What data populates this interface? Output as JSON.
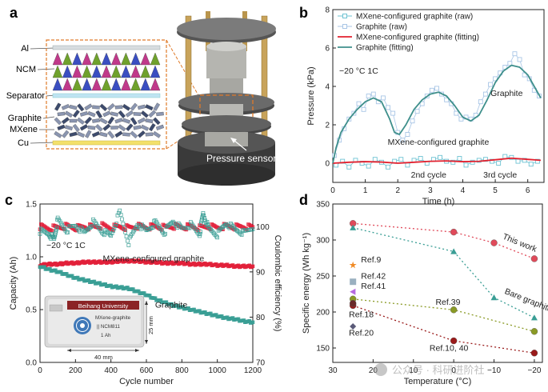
{
  "panel_labels": {
    "a": "a",
    "b": "b",
    "c": "c",
    "d": "d"
  },
  "panel_a": {
    "layer_labels": [
      "Al",
      "NCM",
      "Separator",
      "Graphite",
      "MXene",
      "Cu"
    ],
    "sensor_label": "Pressure sensor",
    "colors": {
      "ncm_pink": "#c0398a",
      "ncm_green": "#6fa12c",
      "ncm_blue": "#3a4ec1",
      "frame": "#e07b2a",
      "cu": "#f3e06a",
      "separator": "#bfe4f2"
    }
  },
  "panel_c_inset": {
    "brand": "Beihang University",
    "line1": "MXene-graphite",
    "line2": "|| NCM811",
    "line3": "1 Ah",
    "width_label": "40 mm",
    "height_label": "25 mm",
    "colors": {
      "brand_bar": "#8b2325"
    }
  },
  "chart_data": [
    {
      "id": "b",
      "type": "line",
      "xlabel": "Time (h)",
      "ylabel": "Pressure (kPa)",
      "xlim": [
        0,
        6.5
      ],
      "ylim": [
        -1,
        8
      ],
      "xticks": [
        0,
        1,
        2,
        3,
        4,
        5,
        6
      ],
      "yticks": [
        0,
        2,
        4,
        6,
        8
      ],
      "legend_position": "top-left",
      "condition_text": "−20 °C   1C",
      "annotations": [
        {
          "text": "Graphite",
          "x": 5.35,
          "y": 3.5
        },
        {
          "text": "MXene-configured graphite",
          "x": 3.25,
          "y": 0.95
        },
        {
          "text": "2nd cycle",
          "x": 2.95,
          "y": -0.75
        },
        {
          "text": "3rd cycle",
          "x": 5.15,
          "y": -0.75
        }
      ],
      "series": [
        {
          "name": "MXene-configured graphite (raw)",
          "style": "square",
          "color": "#6fc3d3",
          "x": [
            0.1,
            0.3,
            0.5,
            0.7,
            0.9,
            1.1,
            1.3,
            1.5,
            1.7,
            1.9,
            2.1,
            2.3,
            2.5,
            2.7,
            2.9,
            3.1,
            3.3,
            3.5,
            3.7,
            3.9,
            4.1,
            4.3,
            4.5,
            4.7,
            4.9,
            5.1,
            5.3,
            5.5,
            5.7,
            5.9,
            6.1,
            6.3
          ],
          "y": [
            -0.1,
            0.1,
            -0.2,
            0.15,
            0.0,
            -0.15,
            0.2,
            0.05,
            -0.2,
            0.1,
            0.2,
            -0.1,
            0.15,
            0.25,
            0.0,
            0.2,
            0.3,
            0.1,
            0.05,
            0.25,
            -0.1,
            0.05,
            0.15,
            0.2,
            0.1,
            0.0,
            0.35,
            0.3,
            0.1,
            0.15,
            -0.05,
            0.1
          ]
        },
        {
          "name": "Graphite (raw)",
          "style": "square",
          "color": "#a9c6e6",
          "x": [
            0.05,
            0.2,
            0.35,
            0.5,
            0.65,
            0.8,
            0.95,
            1.1,
            1.25,
            1.4,
            1.55,
            1.7,
            1.85,
            2.0,
            2.15,
            2.3,
            2.45,
            2.6,
            2.75,
            2.9,
            3.05,
            3.2,
            3.35,
            3.5,
            3.65,
            3.8,
            3.95,
            4.1,
            4.25,
            4.4,
            4.55,
            4.7,
            4.85,
            5.0,
            5.15,
            5.3,
            5.45,
            5.6,
            5.75,
            5.9,
            6.05,
            6.2,
            6.35
          ],
          "y": [
            0.4,
            1.2,
            1.8,
            2.3,
            2.6,
            3.1,
            2.8,
            3.5,
            3.6,
            3.2,
            3.4,
            2.9,
            2.6,
            1.6,
            1.2,
            1.5,
            2.2,
            2.7,
            3.1,
            3.5,
            3.8,
            3.9,
            3.6,
            3.3,
            3.1,
            2.6,
            2.3,
            2.4,
            2.3,
            2.5,
            3.2,
            3.6,
            4.1,
            4.4,
            4.7,
            5.0,
            5.2,
            5.7,
            5.4,
            4.6,
            4.4,
            3.8,
            3.5
          ]
        },
        {
          "name": "MXene-configured graphite (fitting)",
          "style": "line",
          "color": "#e2202e",
          "x": [
            0,
            0.5,
            1,
            1.5,
            2,
            2.5,
            3,
            3.5,
            4,
            4.5,
            5,
            5.5,
            6,
            6.4
          ],
          "y": [
            0.0,
            0.05,
            0.08,
            0.06,
            0.0,
            0.05,
            0.1,
            0.12,
            0.08,
            0.1,
            0.18,
            0.26,
            0.2,
            0.15
          ]
        },
        {
          "name": "Graphite (fitting)",
          "style": "line",
          "color": "#3e8f8b",
          "x": [
            0,
            0.1,
            0.25,
            0.5,
            0.75,
            1,
            1.25,
            1.5,
            1.75,
            1.9,
            2.05,
            2.25,
            2.5,
            2.75,
            3,
            3.25,
            3.5,
            3.75,
            4,
            4.25,
            4.5,
            4.75,
            5,
            5.25,
            5.5,
            5.75,
            6,
            6.2,
            6.4
          ],
          "y": [
            0.0,
            0.8,
            1.6,
            2.3,
            2.8,
            3.2,
            3.4,
            3.2,
            2.3,
            1.6,
            1.5,
            2.0,
            2.8,
            3.3,
            3.6,
            3.7,
            3.5,
            3.0,
            2.4,
            2.2,
            2.5,
            3.3,
            4.2,
            4.8,
            5.1,
            5.0,
            4.6,
            4.0,
            3.4
          ]
        }
      ]
    },
    {
      "id": "c",
      "type": "scatter",
      "xlabel": "Cycle number",
      "ylabel": "Capacity (Ah)",
      "y2label": "Coulombic efficiency (%)",
      "xlim": [
        0,
        1200
      ],
      "ylim": [
        0,
        1.5
      ],
      "y2lim": [
        70,
        105
      ],
      "xticks": [
        0,
        200,
        400,
        600,
        800,
        1000,
        1200
      ],
      "yticks": [
        0,
        0.5,
        1.0,
        1.5
      ],
      "yticklabels": [
        "0.0",
        "0.5",
        "1.0",
        "1.5"
      ],
      "y2ticks": [
        70,
        80,
        90,
        100
      ],
      "condition_text": "−20 °C   1C",
      "annotations": [
        {
          "text": "MXene-configured graphite",
          "x": 640,
          "y": 0.96
        },
        {
          "text": "Graphite",
          "x": 740,
          "y": 0.52
        }
      ],
      "series": [
        {
          "name": "MXene-configured graphite",
          "metric": "capacity",
          "color": "#e2203a",
          "x": [
            0,
            50,
            100,
            150,
            200,
            250,
            300,
            350,
            400,
            450,
            500,
            550,
            600,
            650,
            700,
            750,
            800,
            850,
            900,
            950,
            1000,
            1050,
            1100,
            1150,
            1200
          ],
          "y": [
            0.92,
            0.93,
            0.93,
            0.94,
            0.94,
            0.95,
            0.95,
            0.95,
            0.95,
            0.96,
            0.96,
            0.96,
            0.95,
            0.95,
            0.94,
            0.94,
            0.94,
            0.93,
            0.93,
            0.93,
            0.92,
            0.92,
            0.91,
            0.91,
            0.91
          ]
        },
        {
          "name": "Graphite",
          "metric": "capacity",
          "color": "#3a9e95",
          "x": [
            0,
            50,
            100,
            150,
            200,
            250,
            300,
            350,
            400,
            450,
            500,
            550,
            600,
            650,
            700,
            750,
            800,
            850,
            900,
            950,
            1000,
            1050,
            1100,
            1150,
            1200
          ],
          "y": [
            0.91,
            0.88,
            0.86,
            0.83,
            0.8,
            0.78,
            0.76,
            0.74,
            0.72,
            0.71,
            0.7,
            0.67,
            0.64,
            0.6,
            0.57,
            0.54,
            0.52,
            0.5,
            0.48,
            0.46,
            0.44,
            0.42,
            0.41,
            0.39,
            0.38
          ]
        },
        {
          "name": "MXene-configured graphite",
          "metric": "coulombic_efficiency",
          "color": "#e2203a",
          "x": [
            0,
            50,
            100,
            150,
            200,
            250,
            300,
            350,
            400,
            450,
            500,
            550,
            600,
            650,
            700,
            750,
            800,
            850,
            900,
            950,
            1000,
            1050,
            1100,
            1150,
            1200
          ],
          "y": [
            100.0,
            99.6,
            99.8,
            100.1,
            99.7,
            100.0,
            99.9,
            100.2,
            99.8,
            100.0,
            99.7,
            100.1,
            99.9,
            100.0,
            99.8,
            100.1,
            99.9,
            100.0,
            99.7,
            100.0,
            99.8,
            100.1,
            99.9,
            100.0,
            99.8
          ]
        },
        {
          "name": "Graphite",
          "metric": "coulombic_efficiency",
          "color": "#3a9e95",
          "x": [
            0,
            50,
            80,
            100,
            150,
            200,
            250,
            300,
            350,
            400,
            450,
            500,
            550,
            600,
            650,
            700,
            750,
            800,
            850,
            900,
            920,
            950,
            1000,
            1050,
            1100,
            1150,
            1200
          ],
          "y": [
            99.0,
            98.4,
            97.2,
            101.5,
            99.2,
            100.3,
            98.6,
            101.0,
            99.0,
            98.0,
            103.2,
            96.5,
            100.6,
            99.1,
            100.9,
            98.7,
            101.2,
            99.5,
            100.4,
            98.3,
            103.0,
            99.6,
            98.2,
            100.8,
            99.4,
            98.6,
            99.9
          ]
        }
      ]
    },
    {
      "id": "d",
      "type": "scatter",
      "xlabel": "Temperature (°C)",
      "ylabel": "Specific energy (Wh kg⁻¹)",
      "xlim": [
        30,
        -22
      ],
      "ylim": [
        130,
        350
      ],
      "xticks": [
        30,
        20,
        10,
        0,
        -10,
        -20
      ],
      "xticklabels": [
        "30",
        "20",
        "10",
        "0",
        "−10",
        "−20"
      ],
      "yticks": [
        150,
        200,
        250,
        300,
        350
      ],
      "series": [
        {
          "name": "This work",
          "marker": "circle",
          "color": "#e04a5a",
          "connected": true,
          "x": [
            25,
            0,
            -10,
            -20
          ],
          "y": [
            323,
            311,
            296,
            274
          ]
        },
        {
          "name": "Bare graphite",
          "marker": "triangle",
          "color": "#3a9e95",
          "connected": true,
          "x": [
            25,
            0,
            -10,
            -20
          ],
          "y": [
            317,
            284,
            220,
            192
          ]
        },
        {
          "name": "Ref.39",
          "marker": "circle",
          "color": "#8a9a25",
          "connected": true,
          "x": [
            25,
            0,
            -20
          ],
          "y": [
            218,
            203,
            173
          ]
        },
        {
          "name": "Ref.10, 40",
          "marker": "circle",
          "color": "#9a1a1a",
          "connected": true,
          "x": [
            25,
            0,
            -20
          ],
          "y": [
            209,
            160,
            143
          ]
        },
        {
          "name": "Ref.9",
          "marker": "star",
          "color": "#f08a24",
          "connected": false,
          "x": [
            25
          ],
          "y": [
            265
          ]
        },
        {
          "name": "Ref.42",
          "marker": "square",
          "color": "#9ab0c0",
          "connected": false,
          "x": [
            25
          ],
          "y": [
            242
          ]
        },
        {
          "name": "Ref.41",
          "marker": "triangle-left",
          "color": "#b66ae0",
          "connected": false,
          "x": [
            25
          ],
          "y": [
            228
          ]
        },
        {
          "name": "Ref.18",
          "marker": "circle",
          "color": "#6a2a2a",
          "connected": false,
          "x": [
            25
          ],
          "y": [
            212
          ]
        },
        {
          "name": "Ref.20",
          "marker": "diamond",
          "color": "#5a5a78",
          "connected": false,
          "x": [
            25
          ],
          "y": [
            180
          ]
        }
      ],
      "point_labels": [
        {
          "text": "This work",
          "x": -12,
          "y": 302,
          "rotate": 22
        },
        {
          "text": "Bare graphite",
          "x": -12.5,
          "y": 226,
          "rotate": 22
        },
        {
          "text": "Ref.9",
          "x": 23,
          "y": 269,
          "rotate": 0
        },
        {
          "text": "Ref.42",
          "x": 23,
          "y": 246,
          "rotate": 0
        },
        {
          "text": "Ref.41",
          "x": 23,
          "y": 232,
          "rotate": 0
        },
        {
          "text": "Ref.39",
          "x": 4.5,
          "y": 210,
          "rotate": 0
        },
        {
          "text": "Ref.18",
          "x": 26,
          "y": 193,
          "rotate": 0
        },
        {
          "text": "Ref.20",
          "x": 26,
          "y": 167,
          "rotate": 0
        },
        {
          "text": "Ref.10, 40",
          "x": 6,
          "y": 146,
          "rotate": 0
        }
      ]
    }
  ],
  "watermark": {
    "text": "公众号 · 科研进阶社"
  }
}
